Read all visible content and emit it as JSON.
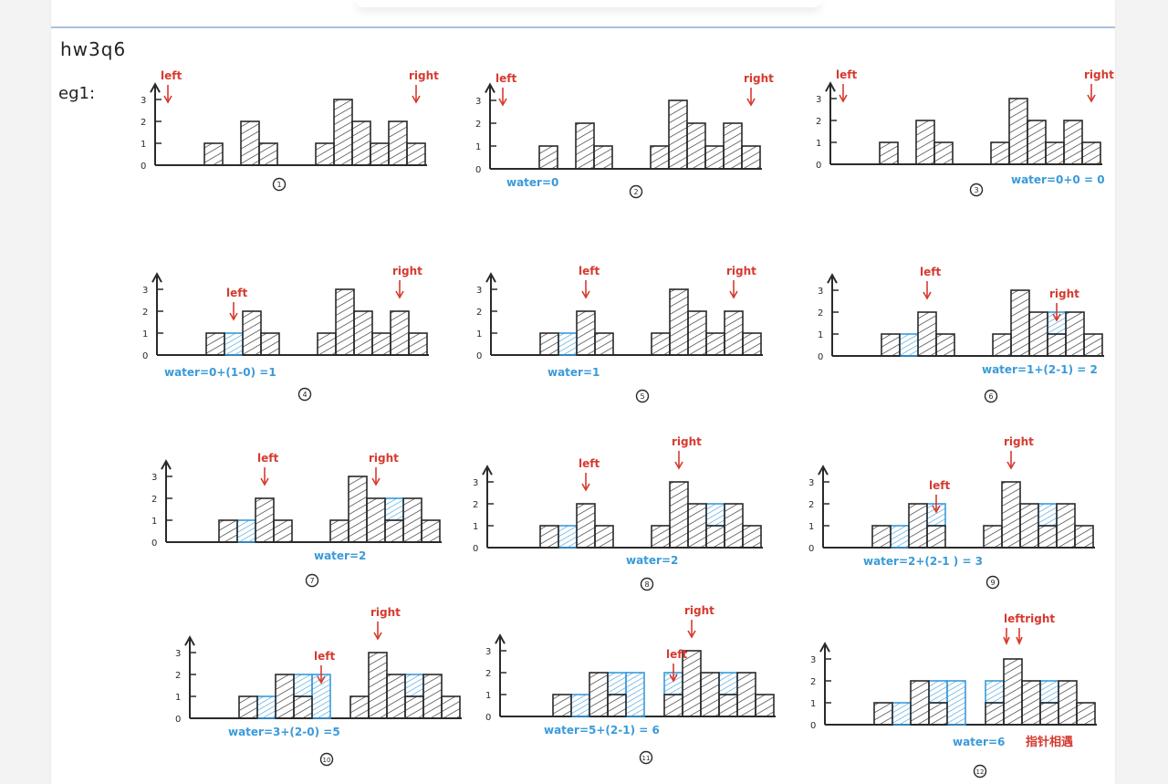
{
  "note": {
    "title": "hw3q6",
    "question_label": "eg1:"
  },
  "labels": {
    "left": "left",
    "right": "right",
    "leftright": "leftright"
  },
  "axis_ticks": [
    "0",
    "1",
    "2",
    "3"
  ],
  "heights": [
    0,
    1,
    0,
    2,
    1,
    0,
    1,
    3,
    2,
    1,
    2,
    1
  ],
  "colors": {
    "ink": "#2a2a2a",
    "pointer": "#d63a2f",
    "water": "#3a9ad9"
  },
  "steps": [
    {
      "num": "1",
      "left": 0,
      "right": 11,
      "water": [],
      "text": ""
    },
    {
      "num": "2",
      "left": 0,
      "right": 11,
      "water": [],
      "text": "water=0"
    },
    {
      "num": "3",
      "left": 0,
      "right": 11,
      "water": [],
      "text": "water=0+0 = 0"
    },
    {
      "num": "4",
      "left": 2,
      "right": 10,
      "water": [
        [
          2,
          1
        ]
      ],
      "text": "water=0+(1-0) =1"
    },
    {
      "num": "5",
      "left": 3,
      "right": 10,
      "water": [
        [
          2,
          1
        ]
      ],
      "text": "water=1"
    },
    {
      "num": "6",
      "left": 3,
      "right": 9,
      "water": [
        [
          2,
          1
        ],
        [
          9,
          1
        ]
      ],
      "text": "water=1+(2-1) = 2"
    },
    {
      "num": "7",
      "left": 3,
      "right": 8,
      "water": [
        [
          2,
          1
        ],
        [
          9,
          1
        ]
      ],
      "text": "water=2"
    },
    {
      "num": "8",
      "left": 3,
      "right": 7,
      "water": [
        [
          2,
          1
        ],
        [
          9,
          1
        ]
      ],
      "text": "water=2"
    },
    {
      "num": "9",
      "left": 4,
      "right": 7,
      "water": [
        [
          2,
          1
        ],
        [
          9,
          1
        ],
        [
          4,
          1
        ]
      ],
      "text": "water=2+(2-1 ) = 3"
    },
    {
      "num": "10",
      "left": 5,
      "right": 7,
      "water": [
        [
          2,
          1
        ],
        [
          9,
          1
        ],
        [
          4,
          1
        ],
        [
          5,
          2
        ]
      ],
      "text": "water=3+(2-0) =5"
    },
    {
      "num": "11",
      "left": 6,
      "right": 7,
      "water": [
        [
          2,
          1
        ],
        [
          9,
          1
        ],
        [
          4,
          1
        ],
        [
          5,
          2
        ],
        [
          6,
          1
        ]
      ],
      "text": "water=5+(2-1) = 6"
    },
    {
      "num": "12",
      "left": 7,
      "right": 7,
      "water": [
        [
          2,
          1
        ],
        [
          9,
          1
        ],
        [
          4,
          1
        ],
        [
          5,
          2
        ],
        [
          6,
          1
        ]
      ],
      "text": "water=6",
      "extra": "指针相遇"
    }
  ]
}
